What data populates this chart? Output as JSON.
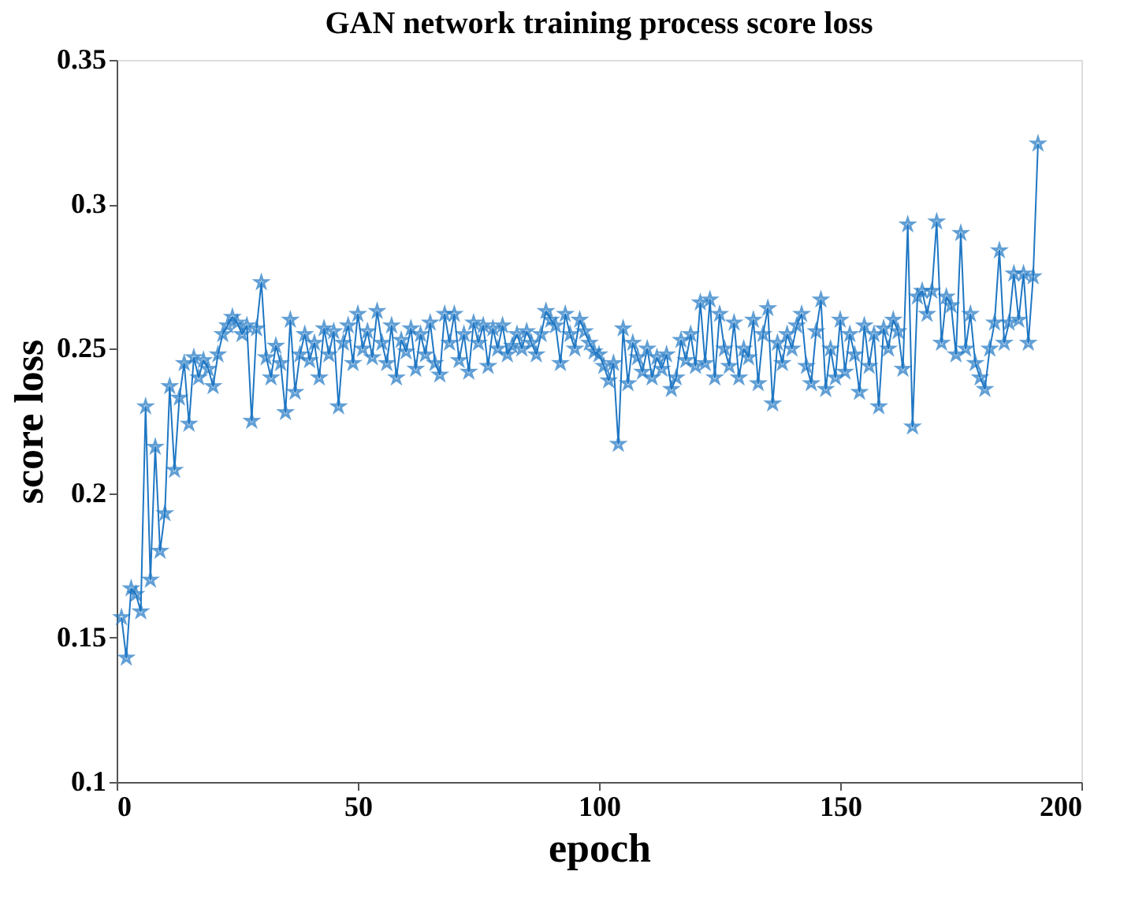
{
  "chart_data": {
    "type": "line",
    "title": "GAN network training process score loss",
    "xlabel": "epoch",
    "ylabel": "score loss",
    "x": [
      1,
      2,
      3,
      4,
      5,
      6,
      7,
      8,
      9,
      10,
      11,
      12,
      13,
      14,
      15,
      16,
      17,
      18,
      19,
      20,
      21,
      22,
      23,
      24,
      25,
      26,
      27,
      28,
      29,
      30,
      31,
      32,
      33,
      34,
      35,
      36,
      37,
      38,
      39,
      40,
      41,
      42,
      43,
      44,
      45,
      46,
      47,
      48,
      49,
      50,
      51,
      52,
      53,
      54,
      55,
      56,
      57,
      58,
      59,
      60,
      61,
      62,
      63,
      64,
      65,
      66,
      67,
      68,
      69,
      70,
      71,
      72,
      73,
      74,
      75,
      76,
      77,
      78,
      79,
      80,
      81,
      82,
      83,
      84,
      85,
      86,
      87,
      88,
      89,
      90,
      91,
      92,
      93,
      94,
      95,
      96,
      97,
      98,
      99,
      100,
      101,
      102,
      103,
      104,
      105,
      106,
      107,
      108,
      109,
      110,
      111,
      112,
      113,
      114,
      115,
      116,
      117,
      118,
      119,
      120,
      121,
      122,
      123,
      124,
      125,
      126,
      127,
      128,
      129,
      130,
      131,
      132,
      133,
      134,
      135,
      136,
      137,
      138,
      139,
      140,
      141,
      142,
      143,
      144,
      145,
      146,
      147,
      148,
      149,
      150,
      151,
      152,
      153,
      154,
      155,
      156,
      157,
      158,
      159,
      160,
      161,
      162,
      163,
      164,
      165,
      166,
      167,
      168,
      169,
      170,
      171,
      172,
      173,
      174,
      175,
      176,
      177,
      178,
      179,
      180,
      181,
      182,
      183,
      184,
      185,
      186,
      187,
      188,
      189,
      190,
      191
    ],
    "series": [
      {
        "color": "#1f77c4",
        "values": [
          0.157,
          0.143,
          0.167,
          0.165,
          0.159,
          0.23,
          0.17,
          0.216,
          0.18,
          0.193,
          0.237,
          0.208,
          0.233,
          0.245,
          0.224,
          0.247,
          0.24,
          0.246,
          0.243,
          0.237,
          0.248,
          0.255,
          0.258,
          0.261,
          0.259,
          0.255,
          0.258,
          0.225,
          0.257,
          0.273,
          0.247,
          0.24,
          0.251,
          0.245,
          0.228,
          0.26,
          0.235,
          0.248,
          0.255,
          0.246,
          0.252,
          0.24,
          0.257,
          0.248,
          0.256,
          0.23,
          0.252,
          0.258,
          0.245,
          0.262,
          0.25,
          0.256,
          0.247,
          0.263,
          0.252,
          0.245,
          0.258,
          0.24,
          0.253,
          0.249,
          0.257,
          0.243,
          0.255,
          0.248,
          0.259,
          0.245,
          0.241,
          0.262,
          0.252,
          0.262,
          0.246,
          0.255,
          0.242,
          0.259,
          0.252,
          0.258,
          0.244,
          0.257,
          0.25,
          0.258,
          0.248,
          0.251,
          0.255,
          0.25,
          0.256,
          0.252,
          0.248,
          0.255,
          0.263,
          0.26,
          0.258,
          0.245,
          0.262,
          0.255,
          0.25,
          0.26,
          0.256,
          0.252,
          0.249,
          0.248,
          0.244,
          0.239,
          0.245,
          0.217,
          0.257,
          0.238,
          0.252,
          0.247,
          0.242,
          0.25,
          0.24,
          0.247,
          0.243,
          0.248,
          0.236,
          0.24,
          0.253,
          0.246,
          0.255,
          0.244,
          0.266,
          0.245,
          0.267,
          0.24,
          0.262,
          0.25,
          0.244,
          0.259,
          0.24,
          0.25,
          0.247,
          0.26,
          0.238,
          0.255,
          0.264,
          0.231,
          0.252,
          0.245,
          0.255,
          0.25,
          0.258,
          0.262,
          0.244,
          0.238,
          0.256,
          0.267,
          0.236,
          0.25,
          0.24,
          0.26,
          0.242,
          0.255,
          0.248,
          0.235,
          0.258,
          0.244,
          0.255,
          0.23,
          0.257,
          0.25,
          0.26,
          0.256,
          0.243,
          0.293,
          0.223,
          0.268,
          0.27,
          0.262,
          0.27,
          0.294,
          0.252,
          0.268,
          0.265,
          0.248,
          0.29,
          0.25,
          0.262,
          0.245,
          0.24,
          0.236,
          0.25,
          0.259,
          0.284,
          0.252,
          0.259,
          0.276,
          0.26,
          0.276,
          0.252,
          0.275,
          0.321
        ]
      }
    ],
    "xlim": [
      0,
      200
    ],
    "ylim": [
      0.1,
      0.35
    ],
    "xticks": [
      0,
      50,
      100,
      150,
      200
    ],
    "yticks": [
      0.1,
      0.15,
      0.2,
      0.25,
      0.3,
      0.35
    ],
    "marker": "star",
    "line_style": "solid",
    "grid": false
  }
}
